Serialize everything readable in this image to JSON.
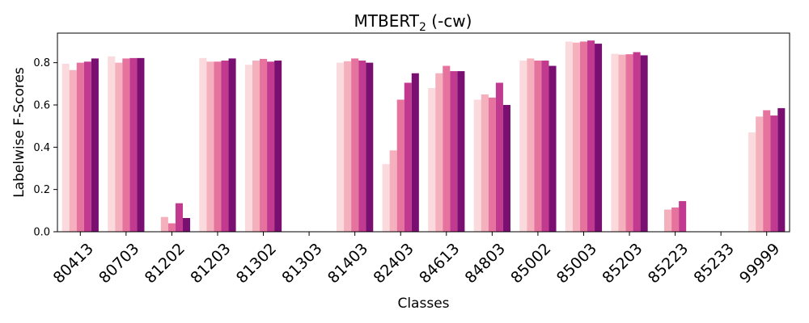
{
  "chart_data": {
    "type": "bar",
    "title": "MTBERT",
    "title_subscript": "2",
    "title_suffix": " (-cw)",
    "xlabel": "Classes",
    "ylabel": "Labelwise F-Scores",
    "ylim": [
      0,
      0.94
    ],
    "yticks": [
      "0.0",
      "0.2",
      "0.4",
      "0.6",
      "0.8"
    ],
    "grid": false,
    "legend": "none",
    "categories": [
      "80413",
      "80703",
      "81202",
      "81203",
      "81302",
      "81303",
      "81403",
      "82403",
      "84613",
      "84803",
      "85002",
      "85003",
      "85203",
      "85223",
      "85233",
      "99999"
    ],
    "series_colors": [
      "#fadadd",
      "#f4b1bd",
      "#e6739e",
      "#c23a8f",
      "#7a0f72",
      "#7a0f72"
    ],
    "series": [
      {
        "values": [
          0.795,
          0.83,
          0.0,
          0.822,
          0.79,
          0.0,
          0.8,
          0.32,
          0.68,
          0.625,
          0.81,
          0.9,
          0.842,
          0.0,
          0.0,
          0.47
        ]
      },
      {
        "values": [
          0.765,
          0.8,
          0.07,
          0.805,
          0.81,
          0.0,
          0.807,
          0.385,
          0.75,
          0.65,
          0.82,
          0.895,
          0.838,
          0.105,
          0.0,
          0.545
        ]
      },
      {
        "values": [
          0.8,
          0.82,
          0.04,
          0.805,
          0.818,
          0.0,
          0.82,
          0.625,
          0.785,
          0.635,
          0.81,
          0.9,
          0.84,
          0.115,
          0.0,
          0.575
        ]
      },
      {
        "values": [
          0.805,
          0.822,
          0.135,
          0.81,
          0.805,
          0.0,
          0.81,
          0.705,
          0.76,
          0.705,
          0.81,
          0.905,
          0.85,
          0.145,
          0.0,
          0.55
        ]
      },
      {
        "values": [
          0.82,
          0.822,
          0.065,
          0.82,
          0.81,
          0.0,
          0.8,
          0.75,
          0.76,
          0.6,
          0.785,
          0.89,
          0.835,
          0.0,
          0.0,
          0.585
        ]
      }
    ]
  }
}
